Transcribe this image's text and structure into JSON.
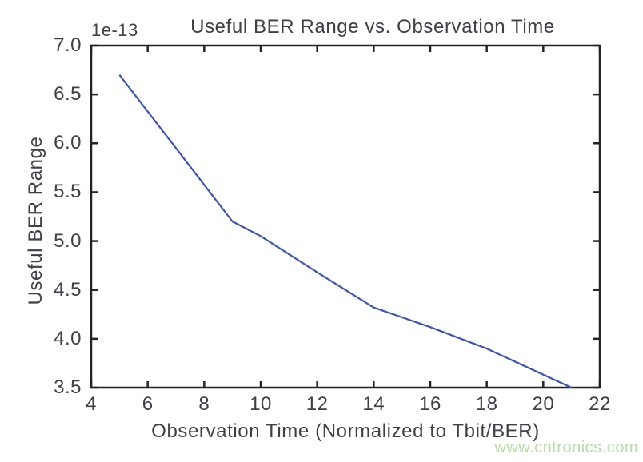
{
  "chart_data": {
    "type": "line",
    "title": "Useful BER Range vs. Observation Time",
    "xlabel": "Observation Time (Normalized to Tbit/BER)",
    "ylabel": "Useful BER Range",
    "y_scale_offset_label": "1e-13",
    "x": [
      5,
      9,
      10,
      12,
      14,
      16,
      18,
      21
    ],
    "y": [
      6.7,
      5.2,
      5.05,
      4.68,
      4.32,
      4.12,
      3.9,
      3.5
    ],
    "xlim": [
      4,
      22
    ],
    "ylim": [
      3.5,
      7.0
    ],
    "xticks": [
      4,
      6,
      8,
      10,
      12,
      14,
      16,
      18,
      20,
      22
    ],
    "yticks": [
      3.5,
      4.0,
      4.5,
      5.0,
      5.5,
      6.0,
      6.5,
      7.0
    ],
    "grid": false,
    "legend": null,
    "line_color": "#4054a8",
    "axis_color": "#262223",
    "text_color": "#3f3f46"
  },
  "watermark": {
    "text": "www.cntronics.com",
    "color": "#b7dbaa"
  }
}
